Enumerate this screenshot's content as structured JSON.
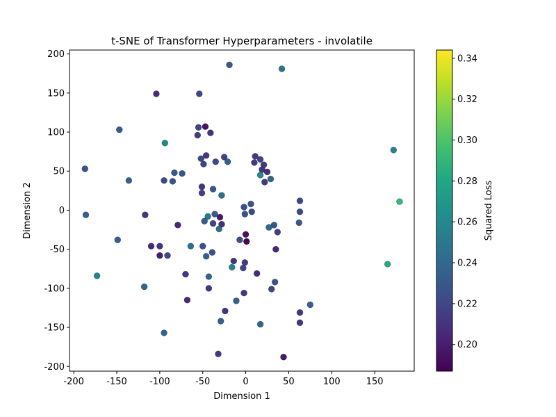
{
  "chart_data": {
    "type": "scatter",
    "title": "t-SNE of Transformer Hyperparameters - involatile",
    "xlabel": "Dimension 1",
    "ylabel": "Dimension 2",
    "xlim": [
      -205,
      196
    ],
    "ylim": [
      -206,
      205
    ],
    "xticks": [
      -200,
      -150,
      -100,
      -50,
      0,
      50,
      100,
      150
    ],
    "yticks": [
      -200,
      -150,
      -100,
      -50,
      0,
      50,
      100,
      150,
      200
    ],
    "grid": false,
    "colorbar": {
      "label": "Squared Loss",
      "colormap": "viridis",
      "range": [
        0.187,
        0.344
      ],
      "ticks": [
        0.2,
        0.22,
        0.24,
        0.26,
        0.28,
        0.3,
        0.32,
        0.34
      ],
      "tick_labels": [
        "0.20",
        "0.22",
        "0.24",
        "0.26",
        "0.28",
        "0.30",
        "0.32",
        "0.34"
      ]
    },
    "points": [
      {
        "x": -19,
        "y": 186,
        "loss": 0.232
      },
      {
        "x": 42,
        "y": 181,
        "loss": 0.248
      },
      {
        "x": -104,
        "y": 149,
        "loss": 0.207
      },
      {
        "x": -54,
        "y": 149,
        "loss": 0.222
      },
      {
        "x": -147,
        "y": 103,
        "loss": 0.232
      },
      {
        "x": -47,
        "y": 107,
        "loss": 0.196
      },
      {
        "x": -55,
        "y": 106,
        "loss": 0.22
      },
      {
        "x": -41,
        "y": 99,
        "loss": 0.209
      },
      {
        "x": -56,
        "y": 96,
        "loss": 0.215
      },
      {
        "x": -94,
        "y": 86,
        "loss": 0.262
      },
      {
        "x": 172,
        "y": 77,
        "loss": 0.255
      },
      {
        "x": -46,
        "y": 70,
        "loss": 0.214
      },
      {
        "x": 11,
        "y": 69,
        "loss": 0.214
      },
      {
        "x": -25,
        "y": 68,
        "loss": 0.217
      },
      {
        "x": -52,
        "y": 66,
        "loss": 0.222
      },
      {
        "x": 17,
        "y": 65,
        "loss": 0.219
      },
      {
        "x": -35,
        "y": 62,
        "loss": 0.22
      },
      {
        "x": -21,
        "y": 62,
        "loss": 0.236
      },
      {
        "x": 10,
        "y": 61,
        "loss": 0.212
      },
      {
        "x": -49,
        "y": 59,
        "loss": 0.218
      },
      {
        "x": 21,
        "y": 58,
        "loss": 0.214
      },
      {
        "x": -187,
        "y": 53,
        "loss": 0.226
      },
      {
        "x": 19,
        "y": 52,
        "loss": 0.21
      },
      {
        "x": 25,
        "y": 49,
        "loss": 0.208
      },
      {
        "x": -83,
        "y": 48,
        "loss": 0.23
      },
      {
        "x": -74,
        "y": 47,
        "loss": 0.229
      },
      {
        "x": 17,
        "y": 45,
        "loss": 0.262
      },
      {
        "x": 29,
        "y": 40,
        "loss": 0.238
      },
      {
        "x": -136,
        "y": 38,
        "loss": 0.236
      },
      {
        "x": -95,
        "y": 38,
        "loss": 0.222
      },
      {
        "x": -85,
        "y": 37,
        "loss": 0.226
      },
      {
        "x": 22,
        "y": 36,
        "loss": 0.214
      },
      {
        "x": -51,
        "y": 30,
        "loss": 0.213
      },
      {
        "x": -38,
        "y": 27,
        "loss": 0.228
      },
      {
        "x": -51,
        "y": 22,
        "loss": 0.216
      },
      {
        "x": -28,
        "y": 19,
        "loss": 0.244
      },
      {
        "x": 63,
        "y": 12,
        "loss": 0.22
      },
      {
        "x": 179,
        "y": 11,
        "loss": 0.292
      },
      {
        "x": 6,
        "y": 8,
        "loss": 0.228
      },
      {
        "x": -2,
        "y": 4,
        "loss": 0.224
      },
      {
        "x": 63,
        "y": -2,
        "loss": 0.222
      },
      {
        "x": 7,
        "y": -2,
        "loss": 0.222
      },
      {
        "x": -36,
        "y": -5,
        "loss": 0.232
      },
      {
        "x": -186,
        "y": -6,
        "loss": 0.236
      },
      {
        "x": -1,
        "y": -5,
        "loss": 0.226
      },
      {
        "x": -117,
        "y": -6,
        "loss": 0.211
      },
      {
        "x": -44,
        "y": -8,
        "loss": 0.252
      },
      {
        "x": -30,
        "y": -9,
        "loss": 0.198
      },
      {
        "x": -48,
        "y": -14,
        "loss": 0.233
      },
      {
        "x": 62,
        "y": -16,
        "loss": 0.23
      },
      {
        "x": -38,
        "y": -17,
        "loss": 0.219
      },
      {
        "x": -28,
        "y": -18,
        "loss": 0.209
      },
      {
        "x": -79,
        "y": -19,
        "loss": 0.205
      },
      {
        "x": 33,
        "y": -19,
        "loss": 0.228
      },
      {
        "x": 27,
        "y": -22,
        "loss": 0.24
      },
      {
        "x": -31,
        "y": -24,
        "loss": 0.242
      },
      {
        "x": 37,
        "y": -28,
        "loss": 0.216
      },
      {
        "x": 0,
        "y": -31,
        "loss": 0.195
      },
      {
        "x": -149,
        "y": -38,
        "loss": 0.232
      },
      {
        "x": -7,
        "y": -38,
        "loss": 0.224
      },
      {
        "x": 1,
        "y": -40,
        "loss": 0.19
      },
      {
        "x": -64,
        "y": -46,
        "loss": 0.245
      },
      {
        "x": -110,
        "y": -46,
        "loss": 0.205
      },
      {
        "x": -100,
        "y": -46,
        "loss": 0.212
      },
      {
        "x": -50,
        "y": -46,
        "loss": 0.226
      },
      {
        "x": 35,
        "y": -50,
        "loss": 0.205
      },
      {
        "x": -39,
        "y": -54,
        "loss": 0.226
      },
      {
        "x": -91,
        "y": -58,
        "loss": 0.22
      },
      {
        "x": -100,
        "y": -58,
        "loss": 0.2
      },
      {
        "x": -46,
        "y": -59,
        "loss": 0.236
      },
      {
        "x": -14,
        "y": -65,
        "loss": 0.212
      },
      {
        "x": -1,
        "y": -67,
        "loss": 0.214
      },
      {
        "x": 165,
        "y": -69,
        "loss": 0.283
      },
      {
        "x": -16,
        "y": -73,
        "loss": 0.255
      },
      {
        "x": -3,
        "y": -74,
        "loss": 0.218
      },
      {
        "x": 13,
        "y": -81,
        "loss": 0.207
      },
      {
        "x": -70,
        "y": -82,
        "loss": 0.212
      },
      {
        "x": -173,
        "y": -84,
        "loss": 0.258
      },
      {
        "x": -43,
        "y": -85,
        "loss": 0.24
      },
      {
        "x": 34,
        "y": -92,
        "loss": 0.226
      },
      {
        "x": -118,
        "y": -98,
        "loss": 0.238
      },
      {
        "x": -43,
        "y": -100,
        "loss": 0.212
      },
      {
        "x": 30,
        "y": -101,
        "loss": 0.22
      },
      {
        "x": -2,
        "y": -106,
        "loss": 0.212
      },
      {
        "x": -68,
        "y": -115,
        "loss": 0.206
      },
      {
        "x": -11,
        "y": -116,
        "loss": 0.236
      },
      {
        "x": 75,
        "y": -121,
        "loss": 0.236
      },
      {
        "x": -24,
        "y": -129,
        "loss": 0.21
      },
      {
        "x": 63,
        "y": -131,
        "loss": 0.212
      },
      {
        "x": -29,
        "y": -142,
        "loss": 0.236
      },
      {
        "x": 63,
        "y": -144,
        "loss": 0.212
      },
      {
        "x": 17,
        "y": -146,
        "loss": 0.24
      },
      {
        "x": -95,
        "y": -157,
        "loss": 0.238
      },
      {
        "x": -32,
        "y": -184,
        "loss": 0.214
      },
      {
        "x": 44,
        "y": -188,
        "loss": 0.198
      }
    ]
  }
}
